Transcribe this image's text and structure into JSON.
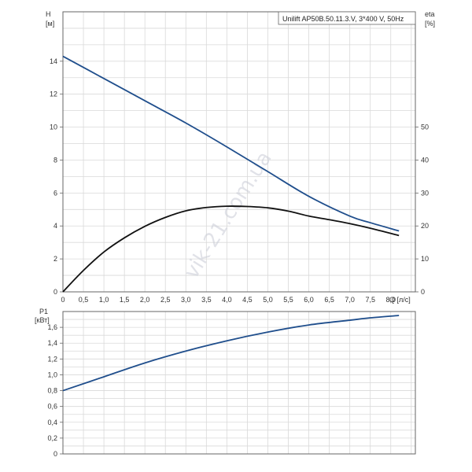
{
  "chart_data": [
    {
      "type": "line",
      "title": "Unilift AP50B.50.11.3.V, 3*400 V, 50Hz",
      "xlabel": "Q [л/с]",
      "ylabel": "H",
      "ylabel_unit": "[м]",
      "y2label": "eta",
      "y2label_unit": "[%]",
      "xlim": [
        0,
        8.6
      ],
      "ylim": [
        0,
        17
      ],
      "y2lim": [
        0,
        85
      ],
      "grid": true,
      "x_ticks": [
        "0",
        "0,5",
        "1,0",
        "1,5",
        "2,0",
        "2,5",
        "3,0",
        "3,5",
        "4,0",
        "4,5",
        "5,0",
        "5,5",
        "6,0",
        "6,5",
        "7,0",
        "7,5",
        "8,0"
      ],
      "y_ticks": [
        "0",
        "2",
        "4",
        "6",
        "8",
        "10",
        "12",
        "14"
      ],
      "y2_ticks": [
        "0",
        "10",
        "20",
        "30",
        "40",
        "50"
      ],
      "series": [
        {
          "color": "#1f4e8c",
          "axis": "left",
          "x": [
            0,
            1,
            2,
            3,
            4,
            5,
            6,
            7,
            7.5,
            8.2
          ],
          "y": [
            14.3,
            12.95,
            11.6,
            10.25,
            8.8,
            7.3,
            5.8,
            4.6,
            4.2,
            3.7
          ]
        },
        {
          "color": "#111111",
          "axis": "right",
          "x": [
            0,
            0.5,
            1,
            1.5,
            2,
            2.5,
            3,
            3.5,
            4,
            4.5,
            5,
            5.5,
            6,
            6.5,
            7,
            7.5,
            8.2
          ],
          "y": [
            0,
            6.5,
            12.1,
            16.4,
            19.9,
            22.6,
            24.6,
            25.6,
            26,
            25.9,
            25.5,
            24.5,
            23,
            21.9,
            20.7,
            19.3,
            17.1
          ]
        }
      ]
    },
    {
      "type": "line",
      "ylabel": "P1",
      "ylabel_unit": "[кВт]",
      "xlim": [
        0,
        8.6
      ],
      "ylim": [
        0,
        1.8
      ],
      "grid": true,
      "y_ticks": [
        "0",
        "0,2",
        "0,4",
        "0,6",
        "0,8",
        "1,0",
        "1,2",
        "1,4",
        "1,6"
      ],
      "series": [
        {
          "color": "#1f4e8c",
          "axis": "left",
          "x": [
            0,
            1,
            2,
            3,
            4,
            5,
            6,
            7,
            7.5,
            8.2
          ],
          "y": [
            0.8,
            0.975,
            1.15,
            1.3,
            1.43,
            1.54,
            1.63,
            1.69,
            1.72,
            1.75
          ]
        }
      ]
    }
  ],
  "watermark": "vik-21.com.ua"
}
